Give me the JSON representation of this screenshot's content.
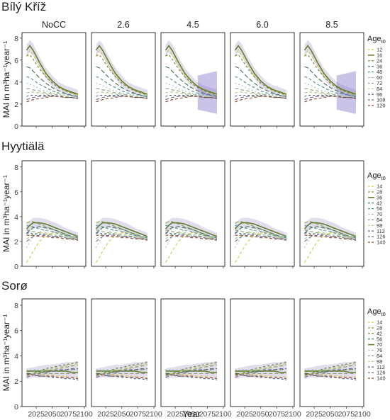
{
  "figure": {
    "x_axis_label": "Year",
    "y_axis_label": "MAI in m³ha⁻¹year⁻¹",
    "facets": [
      "NoCC",
      "2.6",
      "4.5",
      "6.0",
      "8.5"
    ],
    "legend_title": "Age",
    "legend_title_subscript": "t0"
  },
  "colors": {
    "age_palette": [
      "#d8c84a",
      "#7f9f3f",
      "#6e7f2e",
      "#3f6f52",
      "#4f8f8f",
      "#9fc2b5",
      "#8aa07a",
      "#b2c986",
      "#3f5f7f",
      "#7a6a8a",
      "#8a4a2f",
      "#6b3d1f"
    ],
    "mean_line": "#5f7f2f",
    "ribbon": "rgba(150,130,190,0.28)",
    "wide_ribbon": "rgba(130,110,200,0.42)",
    "facet_strip_bg": "#ffffff",
    "panel_border": "#333333"
  },
  "chart_data": [
    {
      "type": "line",
      "site": "Bílý Kříž",
      "xlabel": "Year",
      "ylabel": "MAI in m³ha⁻¹year⁻¹",
      "xlim": [
        2005,
        2100
      ],
      "ylim": [
        0,
        8.5
      ],
      "x_ticks": [
        2025,
        2050,
        2075,
        2100
      ],
      "y_ticks": [
        0,
        2,
        4,
        6,
        8
      ],
      "legend_title": "Age",
      "legend_entries": [
        "12",
        "16",
        "24",
        "36",
        "48",
        "60",
        "72",
        "84",
        "96",
        "108",
        "120"
      ],
      "x": [
        2010,
        2015,
        2020,
        2030,
        2040,
        2050,
        2060,
        2070,
        2080,
        2090
      ],
      "series": [
        {
          "name": "12",
          "values": [
            6.3,
            6.9,
            6.5,
            5.5,
            4.6,
            3.9,
            3.5,
            3.2,
            3.0,
            2.8
          ]
        },
        {
          "name": "16",
          "values": [
            6.9,
            7.3,
            6.9,
            5.8,
            4.8,
            4.1,
            3.6,
            3.3,
            3.1,
            2.9
          ]
        },
        {
          "name": "24",
          "values": [
            6.4,
            6.5,
            6.1,
            5.2,
            4.5,
            3.9,
            3.5,
            3.2,
            3.0,
            2.8
          ]
        },
        {
          "name": "36",
          "values": [
            5.4,
            5.3,
            5.0,
            4.4,
            3.9,
            3.5,
            3.2,
            3.0,
            2.8,
            2.7
          ]
        },
        {
          "name": "48",
          "values": [
            4.5,
            4.4,
            4.2,
            3.8,
            3.5,
            3.2,
            3.0,
            2.9,
            2.8,
            2.6
          ]
        },
        {
          "name": "60",
          "values": [
            3.9,
            3.8,
            3.7,
            3.4,
            3.2,
            3.0,
            2.9,
            2.8,
            2.7,
            2.6
          ]
        },
        {
          "name": "72",
          "values": [
            3.4,
            3.4,
            3.3,
            3.2,
            3.0,
            2.9,
            2.8,
            2.7,
            2.6,
            2.5
          ]
        },
        {
          "name": "84",
          "values": [
            3.0,
            3.1,
            3.1,
            3.0,
            2.9,
            2.8,
            2.7,
            2.7,
            2.6,
            2.5
          ]
        },
        {
          "name": "96",
          "values": [
            2.7,
            2.8,
            2.8,
            2.8,
            2.8,
            2.8,
            2.7,
            2.6,
            2.6,
            2.5
          ]
        },
        {
          "name": "108",
          "values": [
            2.4,
            2.5,
            2.6,
            2.7,
            2.7,
            2.7,
            2.7,
            2.6,
            2.6,
            2.5
          ]
        },
        {
          "name": "120",
          "values": [
            2.2,
            2.3,
            2.4,
            2.5,
            2.6,
            2.7,
            2.7,
            2.6,
            2.6,
            2.5
          ]
        }
      ],
      "mean_series": "16",
      "ribbon": {
        "lower": [
          6.3,
          6.7,
          6.4,
          5.3,
          4.3,
          3.6,
          3.2,
          2.9,
          2.7,
          2.5
        ],
        "upper": [
          7.4,
          7.8,
          7.5,
          6.3,
          5.3,
          4.6,
          4.0,
          3.7,
          3.5,
          3.3
        ]
      },
      "wide_ribbon_scenarios": [
        "4.5",
        "8.5"
      ],
      "wide_ribbon": {
        "x": [
          2060,
          2090
        ],
        "lower": [
          1.5,
          1.1
        ],
        "upper": [
          4.6,
          5.0
        ]
      }
    },
    {
      "type": "line",
      "site": "Hyytiälä",
      "xlabel": "Year",
      "ylabel": "MAI in m³ha⁻¹year⁻¹",
      "xlim": [
        2005,
        2100
      ],
      "ylim": [
        0,
        8.5
      ],
      "x_ticks": [
        2025,
        2050,
        2075,
        2100
      ],
      "y_ticks": [
        0,
        2,
        4,
        6,
        8
      ],
      "legend_title": "Age",
      "legend_entries": [
        "14",
        "28",
        "36",
        "42",
        "56",
        "70",
        "84",
        "98",
        "112",
        "126",
        "140"
      ],
      "x": [
        2010,
        2015,
        2020,
        2030,
        2040,
        2050,
        2060,
        2070,
        2080,
        2090
      ],
      "series": [
        {
          "name": "14",
          "values": [
            0.3,
            0.7,
            1.2,
            2.0,
            2.5,
            2.7,
            2.7,
            2.6,
            2.4,
            2.3
          ]
        },
        {
          "name": "28",
          "values": [
            3.5,
            3.6,
            3.6,
            3.4,
            3.2,
            3.0,
            2.8,
            2.6,
            2.4,
            2.3
          ]
        },
        {
          "name": "36",
          "values": [
            3.0,
            3.3,
            3.5,
            3.5,
            3.4,
            3.2,
            3.0,
            2.8,
            2.6,
            2.4
          ]
        },
        {
          "name": "42",
          "values": [
            2.6,
            2.9,
            3.1,
            3.2,
            3.1,
            3.0,
            2.8,
            2.6,
            2.4,
            2.3
          ]
        },
        {
          "name": "56",
          "values": [
            3.3,
            3.2,
            3.2,
            3.0,
            2.9,
            2.8,
            2.6,
            2.5,
            2.4,
            2.3
          ]
        },
        {
          "name": "70",
          "values": [
            1.5,
            2.0,
            2.4,
            2.8,
            2.9,
            2.8,
            2.7,
            2.5,
            2.4,
            2.3
          ]
        },
        {
          "name": "84",
          "values": [
            2.9,
            2.9,
            2.8,
            2.7,
            2.6,
            2.5,
            2.4,
            2.4,
            2.3,
            2.2
          ]
        },
        {
          "name": "98",
          "values": [
            2.2,
            2.4,
            2.6,
            2.7,
            2.7,
            2.6,
            2.5,
            2.4,
            2.3,
            2.2
          ]
        },
        {
          "name": "112",
          "values": [
            2.7,
            2.7,
            2.6,
            2.6,
            2.5,
            2.4,
            2.4,
            2.3,
            2.2,
            2.2
          ]
        },
        {
          "name": "126",
          "values": [
            2.0,
            2.2,
            2.4,
            2.5,
            2.5,
            2.4,
            2.4,
            2.3,
            2.2,
            2.1
          ]
        },
        {
          "name": "140",
          "values": [
            2.5,
            2.5,
            2.5,
            2.4,
            2.4,
            2.3,
            2.3,
            2.2,
            2.2,
            2.1
          ]
        }
      ],
      "mean_series": "36",
      "ribbon": {
        "lower": [
          2.6,
          2.9,
          3.1,
          3.1,
          3.0,
          2.8,
          2.6,
          2.4,
          2.2,
          2.1
        ],
        "upper": [
          3.4,
          3.7,
          3.9,
          3.9,
          3.8,
          3.6,
          3.4,
          3.1,
          2.9,
          2.7
        ]
      }
    },
    {
      "type": "line",
      "site": "Sorø",
      "xlabel": "Year",
      "ylabel": "MAI in m³ha⁻¹year⁻¹",
      "xlim": [
        2005,
        2100
      ],
      "ylim": [
        0,
        8.5
      ],
      "x_ticks": [
        2025,
        2050,
        2075,
        2100
      ],
      "y_ticks": [
        0,
        2,
        4,
        6,
        8
      ],
      "legend_title": "Age",
      "legend_entries": [
        "14",
        "28",
        "42",
        "56",
        "70",
        "76",
        "84",
        "98",
        "112",
        "126",
        "140"
      ],
      "x": [
        2010,
        2020,
        2030,
        2040,
        2050,
        2060,
        2070,
        2080,
        2090
      ],
      "series": [
        {
          "name": "14",
          "values": [
            2.7,
            2.6,
            2.6,
            2.5,
            2.5,
            2.4,
            2.4,
            2.3,
            2.3
          ]
        },
        {
          "name": "28",
          "values": [
            2.5,
            2.6,
            2.7,
            2.8,
            2.9,
            3.0,
            3.1,
            3.2,
            3.3
          ]
        },
        {
          "name": "42",
          "values": [
            2.4,
            2.6,
            2.8,
            3.0,
            3.1,
            3.2,
            3.3,
            3.4,
            3.5
          ]
        },
        {
          "name": "56",
          "values": [
            2.6,
            2.6,
            2.7,
            2.7,
            2.8,
            2.8,
            2.9,
            2.9,
            3.0
          ]
        },
        {
          "name": "70",
          "values": [
            2.8,
            2.8,
            2.8,
            2.8,
            2.8,
            2.8,
            2.8,
            2.7,
            2.7
          ]
        },
        {
          "name": "76",
          "values": [
            2.9,
            2.9,
            2.9,
            2.9,
            2.9,
            2.9,
            2.9,
            2.9,
            2.9
          ]
        },
        {
          "name": "84",
          "values": [
            2.5,
            2.5,
            2.5,
            2.6,
            2.6,
            2.6,
            2.6,
            2.6,
            2.6
          ]
        },
        {
          "name": "98",
          "values": [
            2.4,
            2.6,
            2.7,
            2.9,
            3.0,
            3.1,
            3.2,
            3.3,
            3.4
          ]
        },
        {
          "name": "112",
          "values": [
            2.6,
            2.5,
            2.4,
            2.4,
            2.3,
            2.3,
            2.2,
            2.2,
            2.1
          ]
        },
        {
          "name": "126",
          "values": [
            2.3,
            2.5,
            2.6,
            2.7,
            2.8,
            2.9,
            2.9,
            3.0,
            3.0
          ]
        },
        {
          "name": "140",
          "values": [
            2.5,
            2.5,
            2.4,
            2.4,
            2.4,
            2.3,
            2.3,
            2.3,
            2.2
          ]
        }
      ],
      "mean_series": "70",
      "ribbon": {
        "lower": [
          2.2,
          2.3,
          2.3,
          2.3,
          2.3,
          2.3,
          2.2,
          2.2,
          2.1
        ],
        "upper": [
          3.0,
          3.1,
          3.2,
          3.3,
          3.3,
          3.4,
          3.5,
          3.5,
          3.6
        ]
      }
    }
  ]
}
